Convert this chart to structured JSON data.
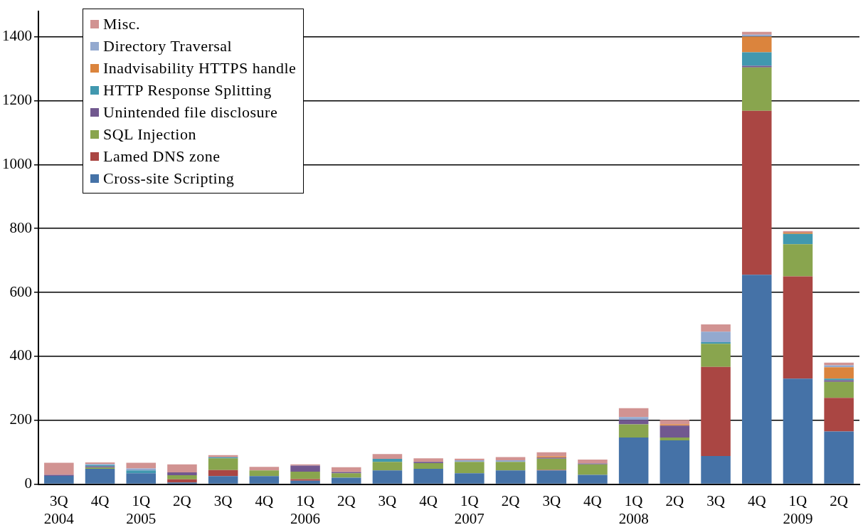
{
  "chart_data": {
    "type": "bar",
    "stacked": true,
    "categories": [
      "3Q\n2004",
      "4Q",
      "1Q\n2005",
      "2Q",
      "3Q",
      "4Q",
      "1Q\n2006",
      "2Q",
      "3Q",
      "4Q",
      "1Q\n2007",
      "2Q",
      "3Q",
      "4Q",
      "1Q\n2008",
      "2Q",
      "3Q",
      "4Q",
      "1Q\n2009",
      "2Q"
    ],
    "series": [
      {
        "name": "Cross-site Scripting",
        "color": "#4572a7",
        "values": [
          26,
          48,
          34,
          5,
          25,
          25,
          11,
          20,
          43,
          48,
          34,
          43,
          43,
          29,
          146,
          137,
          88,
          655,
          330,
          165
        ]
      },
      {
        "name": "Lamed DNS zone",
        "color": "#aa4643",
        "values": [
          0,
          0,
          0,
          10,
          19,
          0,
          5,
          0,
          0,
          0,
          0,
          0,
          2,
          0,
          0,
          0,
          279,
          513,
          320,
          105
        ]
      },
      {
        "name": "SQL Injection",
        "color": "#89a54e",
        "values": [
          0,
          4,
          0,
          13,
          37,
          18,
          23,
          14,
          27,
          18,
          36,
          27,
          35,
          33,
          41,
          9,
          72,
          136,
          101,
          50
        ]
      },
      {
        "name": "Unintended file disclosure",
        "color": "#71588f",
        "values": [
          3,
          4,
          0,
          9,
          0,
          0,
          19,
          4,
          0,
          4,
          0,
          0,
          3,
          3,
          14,
          37,
          0,
          5,
          0,
          5
        ]
      },
      {
        "name": "HTTP Response Splitting",
        "color": "#4198af",
        "values": [
          0,
          4,
          9,
          0,
          3,
          0,
          0,
          0,
          9,
          0,
          0,
          0,
          0,
          0,
          0,
          0,
          5,
          42,
          32,
          5
        ]
      },
      {
        "name": "Inadvisability HTTPS handle",
        "color": "#db843d",
        "values": [
          0,
          0,
          0,
          0,
          0,
          0,
          0,
          0,
          0,
          0,
          0,
          0,
          4,
          0,
          0,
          4,
          0,
          49,
          4,
          36
        ]
      },
      {
        "name": "Directory Traversal",
        "color": "#93a9cf",
        "values": [
          0,
          3,
          6,
          0,
          0,
          0,
          0,
          0,
          0,
          0,
          5,
          5,
          0,
          0,
          9,
          0,
          33,
          6,
          0,
          6
        ]
      },
      {
        "name": "Misc.",
        "color": "#d19392",
        "values": [
          38,
          5,
          18,
          25,
          7,
          11,
          4,
          15,
          15,
          11,
          5,
          10,
          13,
          12,
          28,
          14,
          23,
          9,
          5,
          8
        ]
      }
    ],
    "ylim": [
      0,
      1480
    ],
    "yticks": [
      0,
      200,
      400,
      600,
      800,
      1000,
      1200,
      1400
    ],
    "grid": "y",
    "legend": "top left"
  }
}
